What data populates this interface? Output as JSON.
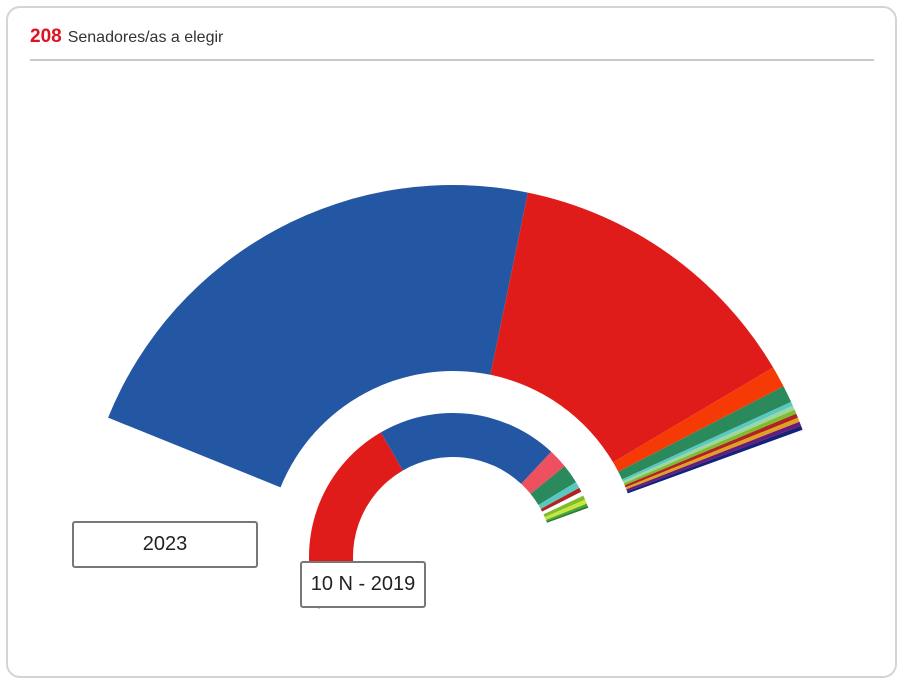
{
  "header": {
    "seat_count": "208",
    "seat_label": "Senadores/as a elegir"
  },
  "chart_data": [
    {
      "type": "pie",
      "name": "2023",
      "label": "2023",
      "start_angle_deg": -68,
      "end_angle_deg": 70,
      "seat_total": 208,
      "slices": [
        {
          "seats": 120,
          "color": "#2457a3"
        },
        {
          "seats": 72,
          "color": "#e01c1a"
        },
        {
          "seats": 5,
          "color": "#f53a05"
        },
        {
          "seats": 4,
          "color": "#2a8a5c"
        },
        {
          "seats": 1,
          "color": "#57c9c0"
        },
        {
          "seats": 1,
          "color": "#9ed6a0"
        },
        {
          "seats": 1,
          "color": "#7dbd2e"
        },
        {
          "seats": 1,
          "color": "#b22222"
        },
        {
          "seats": 1,
          "color": "#e0a020"
        },
        {
          "seats": 1,
          "color": "#6a1b7a"
        },
        {
          "seats": 1,
          "color": "#13237d"
        }
      ]
    },
    {
      "type": "pie",
      "name": "10 N - 2019",
      "label": "10 N - 2019",
      "start_angle_deg": -111,
      "end_angle_deg": 70,
      "seat_total": 208,
      "slices": [
        {
          "seats": 93,
          "color": "#e01c1a"
        },
        {
          "seats": 84,
          "color": "#2457a3"
        },
        {
          "seats": 9,
          "color": "#ef5060"
        },
        {
          "seats": 9,
          "color": "#2a8a5c"
        },
        {
          "seats": 3,
          "color": "#57c9c0"
        },
        {
          "seats": 2,
          "color": "#b22222"
        },
        {
          "seats": 2,
          "color": "#ffffff"
        },
        {
          "seats": 2,
          "color": "#7dbd2e"
        },
        {
          "seats": 2,
          "color": "#c8e63c"
        },
        {
          "seats": 1,
          "color": "#4aa33a"
        },
        {
          "seats": 1,
          "color": "#2e7d32"
        }
      ]
    }
  ]
}
